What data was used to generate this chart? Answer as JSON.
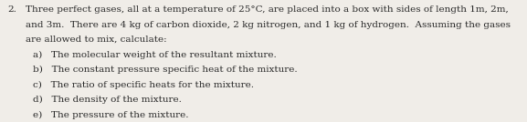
{
  "number": "2.",
  "intro_line1": "Three perfect gases, all at a temperature of 25°C, are placed into a box with sides of length 1m, 2m,",
  "intro_line2": "and 3m.  There are 4 kg of carbon dioxide, 2 kg nitrogen, and 1 kg of hydrogen.  Assuming the gases",
  "intro_line3": "are allowed to mix, calculate:",
  "items": [
    "a)   The molecular weight of the resultant mixture.",
    "b)   The constant pressure specific heat of the mixture.",
    "c)   The ratio of specific heats for the mixture.",
    "d)   The density of the mixture.",
    "e)   The pressure of the mixture."
  ],
  "font_size": 7.5,
  "text_color": "#2a2a2a",
  "bg_color": "#f0ede8",
  "font_family": "serif"
}
